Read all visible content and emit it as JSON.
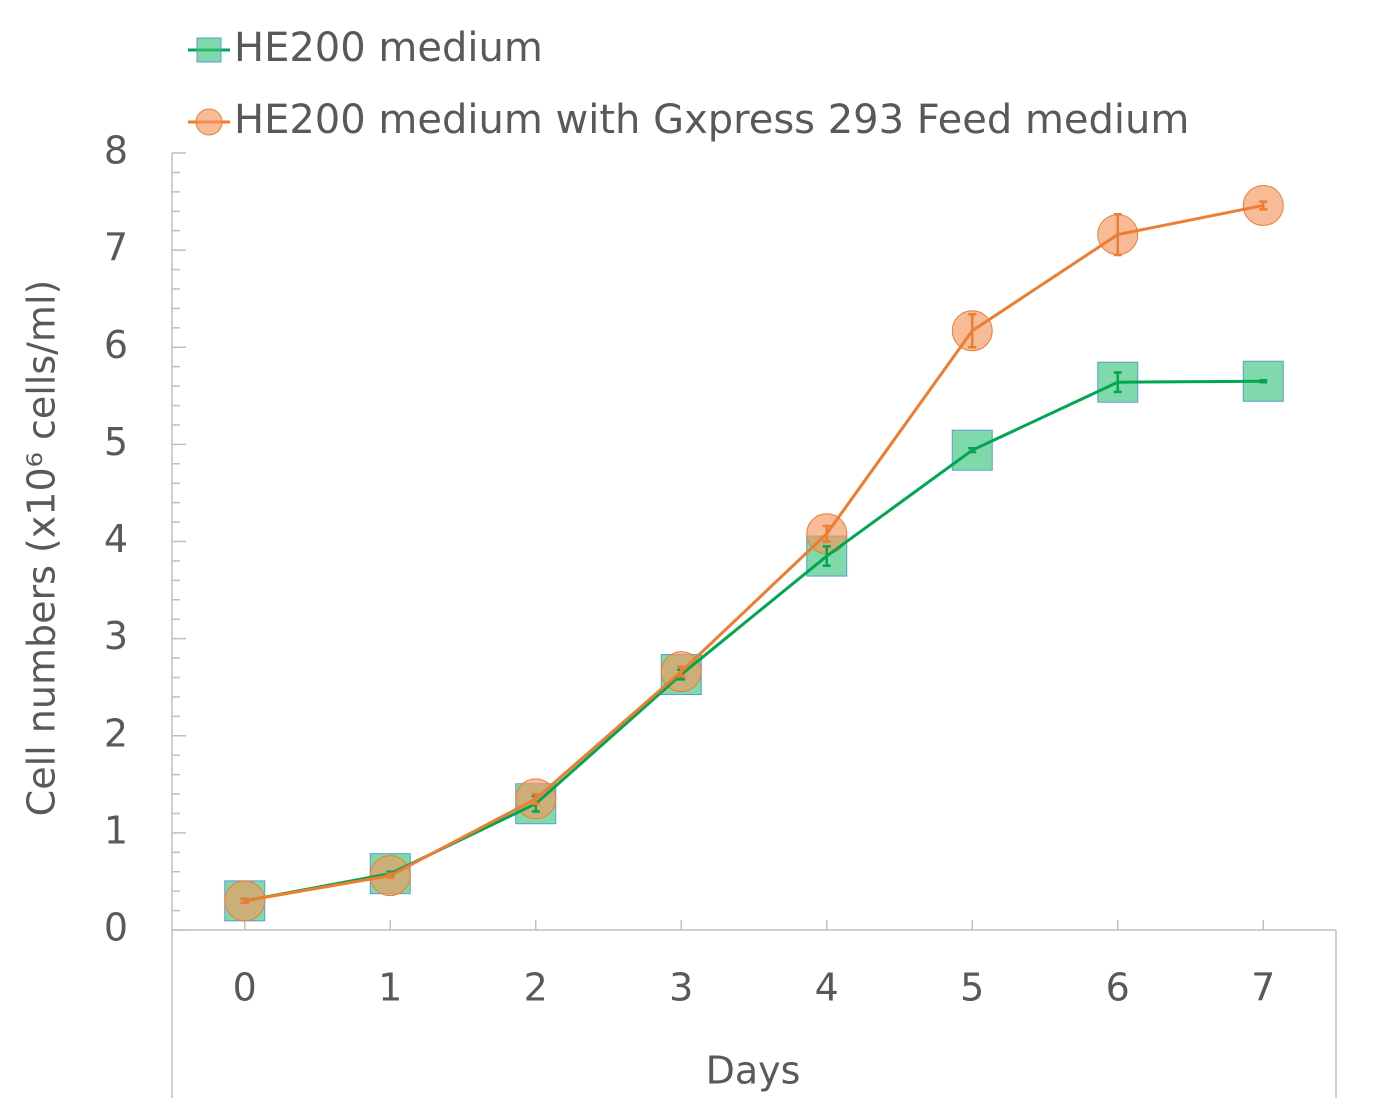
{
  "chart_data": {
    "type": "line",
    "x_label": "Days",
    "y_label": "Cell numbers (x10⁶ cells/ml)",
    "categories": [
      "0",
      "1",
      "2",
      "3",
      "4",
      "5",
      "6",
      "7"
    ],
    "series": [
      {
        "name": "HE200 medium",
        "color": "#00a651",
        "marker": "square",
        "values": [
          0.3,
          0.58,
          1.3,
          2.63,
          3.85,
          4.94,
          5.64,
          5.65
        ],
        "errors": [
          0.02,
          0.02,
          0.08,
          0.05,
          0.1,
          0.02,
          0.1,
          0.01
        ]
      },
      {
        "name": "HE200 medium with Gxpress 293 Feed medium",
        "color": "#ed7d31",
        "marker": "circle",
        "values": [
          0.3,
          0.56,
          1.35,
          2.66,
          4.08,
          6.17,
          7.16,
          7.46
        ],
        "errors": [
          0.02,
          0.02,
          0.05,
          0.05,
          0.08,
          0.17,
          0.21,
          0.04
        ]
      }
    ],
    "ylim": [
      0,
      8
    ],
    "yticks": [
      0,
      1,
      2,
      3,
      4,
      5,
      6,
      7,
      8
    ],
    "legend": "top-left"
  }
}
